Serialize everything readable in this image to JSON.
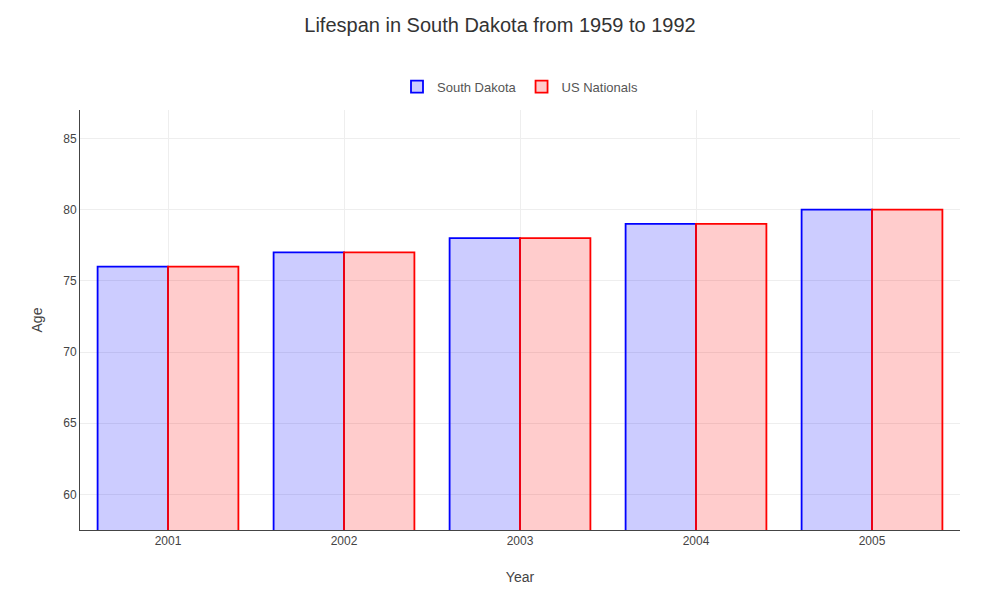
{
  "chart_data": {
    "type": "bar",
    "title": "Lifespan in South Dakota from 1959 to 1992",
    "xlabel": "Year",
    "ylabel": "Age",
    "categories": [
      "2001",
      "2002",
      "2003",
      "2004",
      "2005"
    ],
    "series": [
      {
        "name": "South Dakota",
        "color": "#0000ff",
        "values": [
          76.0,
          77.0,
          78.0,
          79.0,
          80.0
        ]
      },
      {
        "name": "US Nationals",
        "color": "#ff0000",
        "values": [
          76.0,
          77.0,
          78.0,
          79.0,
          80.0
        ]
      }
    ],
    "ylim": [
      57.5,
      87
    ],
    "yticks": [
      60,
      65,
      70,
      75,
      80,
      85
    ],
    "grid": true,
    "legend": "upper center"
  }
}
